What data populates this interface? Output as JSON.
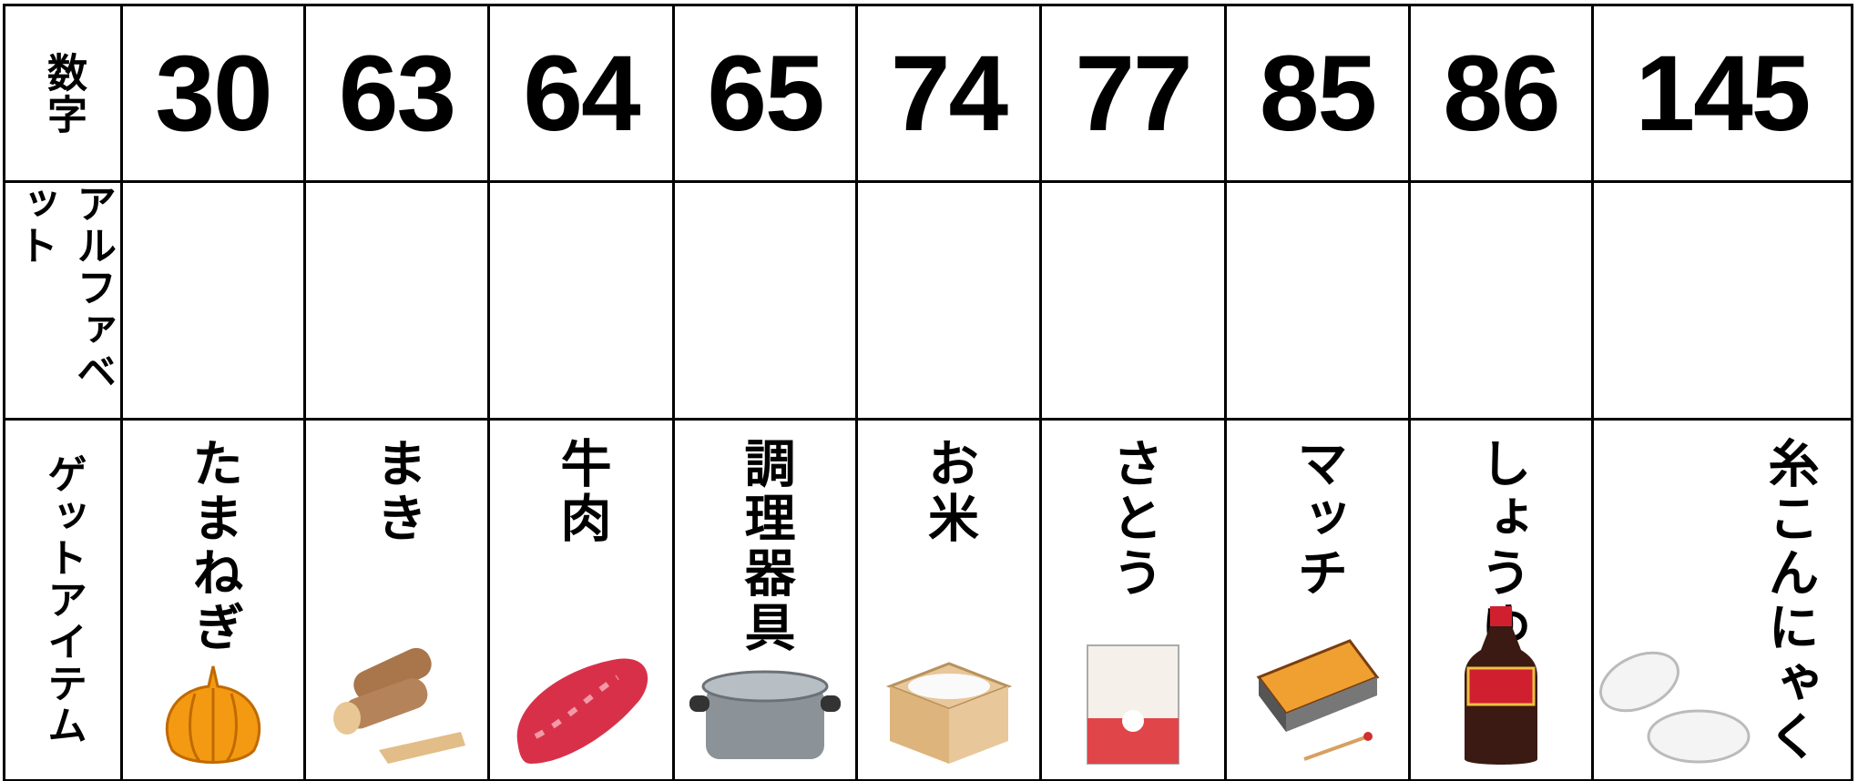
{
  "table": {
    "row_headers": [
      "数字",
      "アルファベット",
      "ゲットアイテム"
    ],
    "numbers": [
      30,
      63,
      64,
      65,
      74,
      77,
      85,
      86,
      145
    ],
    "items": [
      "たまねぎ",
      "まき",
      "牛肉",
      "調理器具",
      "お米",
      "さとう",
      "マッチ",
      "しょうゆ",
      "糸こんにゃく"
    ]
  }
}
